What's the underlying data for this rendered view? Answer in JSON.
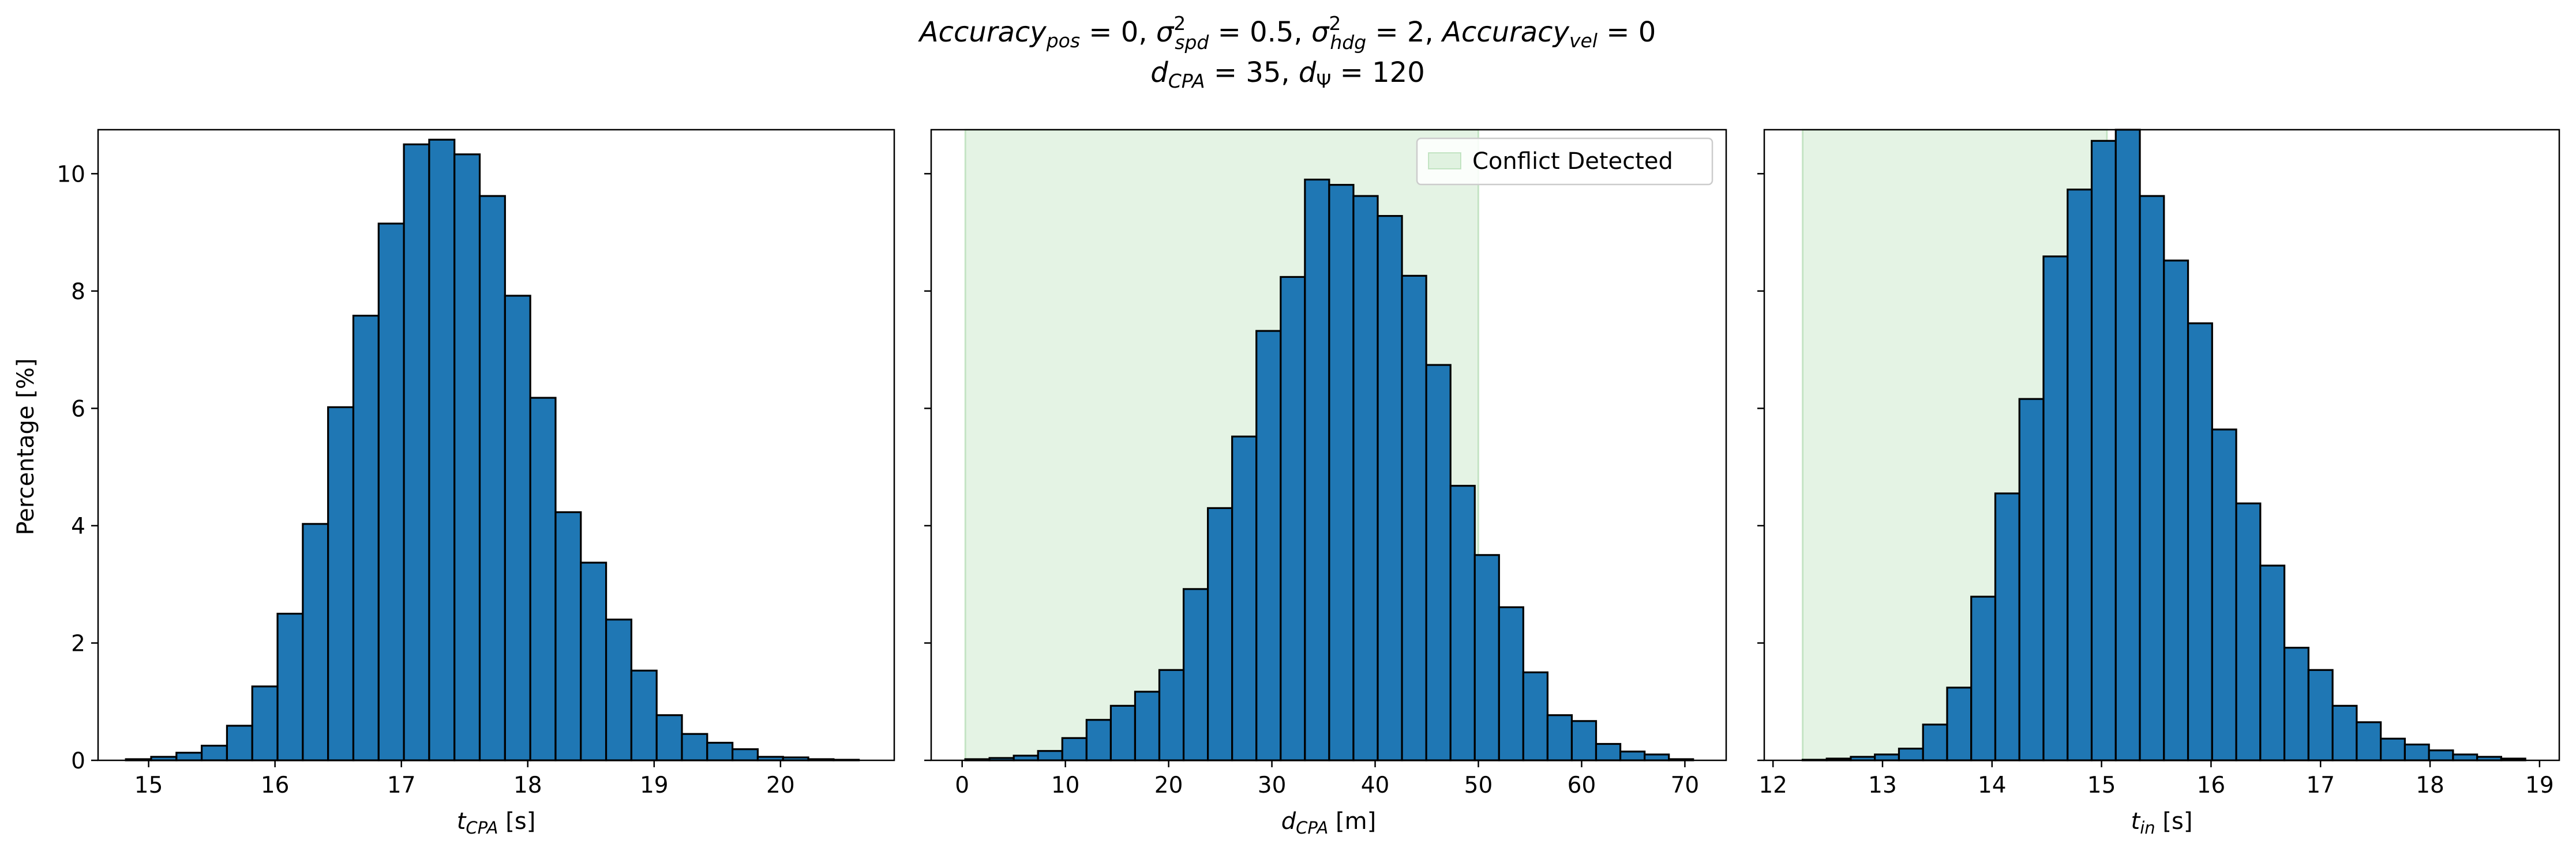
{
  "suptitle": {
    "line1": "Accuracy_pos = 0, σ²_spd = 0.5, σ²_hdg = 2, Accuracy_vel = 0",
    "line2": "d_CPA = 35, d_Ψ = 120"
  },
  "colors": {
    "bar_fill": "#1f77b4",
    "bar_edge": "#000000",
    "conflict_fill": "#2ca02c"
  },
  "chart_data": [
    {
      "type": "bar",
      "histogram": true,
      "xlabel": "t_CPA [s]",
      "ylabel": "Percentage [%]",
      "xlim": [
        14.6,
        20.9
      ],
      "ylim": [
        0,
        10.75
      ],
      "xticks": [
        15,
        16,
        17,
        18,
        19,
        20
      ],
      "yticks": [
        0,
        2,
        4,
        6,
        8,
        10
      ],
      "bin_edges": [
        14.82,
        15.02,
        15.22,
        15.42,
        15.62,
        15.82,
        16.02,
        16.22,
        16.42,
        16.62,
        16.82,
        17.02,
        17.22,
        17.42,
        17.62,
        17.82,
        18.02,
        18.22,
        18.42,
        18.62,
        18.82,
        19.02,
        19.22,
        19.42,
        19.62,
        19.82,
        20.02,
        20.22,
        20.42,
        20.62
      ],
      "values": [
        0.02,
        0.06,
        0.13,
        0.25,
        0.59,
        1.26,
        2.5,
        4.03,
        6.02,
        7.58,
        9.15,
        10.5,
        10.58,
        10.33,
        9.62,
        7.92,
        6.18,
        4.23,
        3.37,
        2.4,
        1.53,
        0.77,
        0.45,
        0.3,
        0.19,
        0.06,
        0.05,
        0.02,
        0.01
      ],
      "grid": false
    },
    {
      "type": "bar",
      "histogram": true,
      "xlabel": "d_CPA [m]",
      "xlim": [
        -3.0,
        74.0
      ],
      "ylim": [
        0,
        10.75
      ],
      "xticks": [
        0,
        10,
        20,
        30,
        40,
        50,
        60,
        70
      ],
      "yticks": [
        0,
        2,
        4,
        6,
        8,
        10
      ],
      "shaded_region": {
        "x": [
          0.3,
          50.0
        ],
        "label": "Conflict Detected"
      },
      "legend": {
        "position": "upper right",
        "entries": [
          "Conflict Detected"
        ]
      },
      "bin_edges": [
        0.3,
        2.65,
        5.0,
        7.35,
        9.7,
        12.05,
        14.4,
        16.75,
        19.1,
        21.45,
        23.8,
        26.15,
        28.5,
        30.85,
        33.2,
        35.55,
        37.9,
        40.25,
        42.6,
        44.95,
        47.3,
        49.65,
        52.0,
        54.35,
        56.7,
        59.05,
        61.4,
        63.75,
        66.1,
        68.45,
        70.8
      ],
      "values": [
        0.02,
        0.04,
        0.08,
        0.16,
        0.38,
        0.69,
        0.93,
        1.17,
        1.54,
        2.92,
        4.3,
        5.52,
        7.32,
        8.24,
        9.9,
        9.81,
        9.62,
        9.28,
        8.26,
        6.74,
        4.68,
        3.5,
        2.61,
        1.5,
        0.77,
        0.67,
        0.28,
        0.15,
        0.1,
        0.02
      ],
      "grid": false
    },
    {
      "type": "bar",
      "histogram": true,
      "xlabel": "t_in [s]",
      "xlim": [
        11.92,
        19.18
      ],
      "ylim": [
        0,
        10.75
      ],
      "xticks": [
        12,
        13,
        14,
        15,
        16,
        17,
        18,
        19
      ],
      "yticks": [
        0,
        2,
        4,
        6,
        8,
        10
      ],
      "shaded_region": {
        "x": [
          12.27,
          15.05
        ]
      },
      "bin_edges": [
        12.27,
        12.49,
        12.71,
        12.93,
        13.15,
        13.37,
        13.59,
        13.81,
        14.03,
        14.25,
        14.47,
        14.69,
        14.91,
        15.13,
        15.35,
        15.57,
        15.79,
        16.01,
        16.23,
        16.45,
        16.67,
        16.89,
        17.11,
        17.33,
        17.55,
        17.77,
        17.99,
        18.21,
        18.43,
        18.65,
        18.87
      ],
      "values": [
        0.01,
        0.03,
        0.06,
        0.1,
        0.2,
        0.61,
        1.24,
        2.79,
        4.55,
        6.16,
        8.59,
        9.73,
        10.56,
        10.75,
        9.62,
        8.52,
        7.45,
        5.64,
        4.38,
        3.32,
        1.92,
        1.54,
        0.93,
        0.65,
        0.37,
        0.27,
        0.17,
        0.1,
        0.06,
        0.03
      ],
      "grid": false
    }
  ]
}
